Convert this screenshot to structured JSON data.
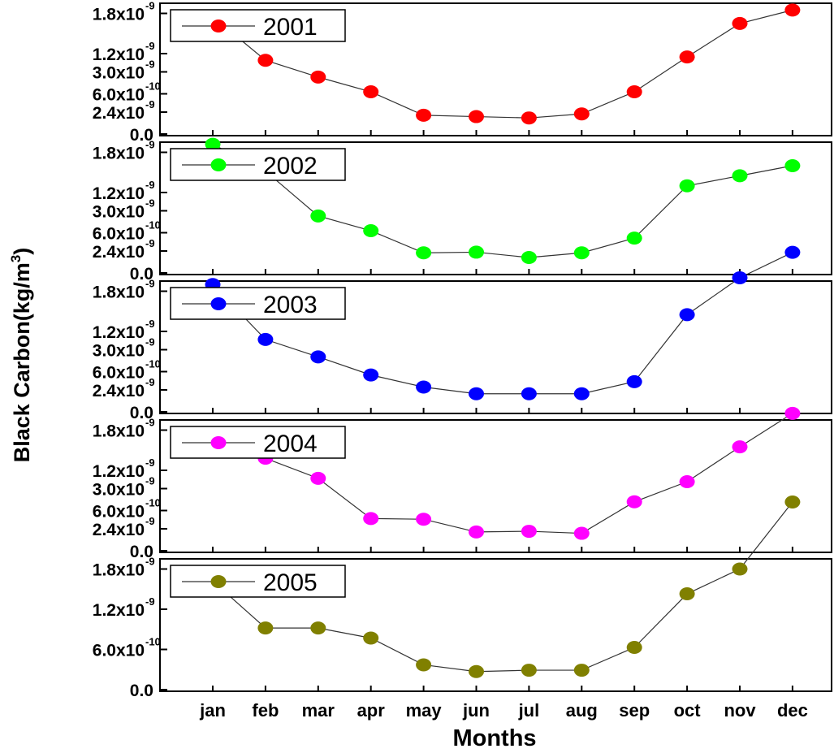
{
  "chart_data": {
    "type": "line",
    "layout": "stacked-panels",
    "ylabel": "Black Carbon(kg/m³)",
    "xlabel": "Months",
    "categories": [
      "jan",
      "feb",
      "mar",
      "apr",
      "may",
      "jun",
      "jul",
      "aug",
      "sep",
      "oct",
      "nov",
      "dec"
    ],
    "ylim": [
      0,
      3.1e-09
    ],
    "yticks": [
      {
        "value": 0,
        "mantissa": "0.0",
        "exponent": ""
      },
      {
        "value": 6e-10,
        "mantissa": "6.0x10",
        "exponent": "-10"
      },
      {
        "value": 1.2e-09,
        "mantissa": "1.2x10",
        "exponent": "-9"
      },
      {
        "value": 1.8e-09,
        "mantissa": "1.8x10",
        "exponent": "-9"
      },
      {
        "value": 2.4e-09,
        "mantissa": "2.4x10",
        "exponent": "-9"
      },
      {
        "value": 3e-09,
        "mantissa": "3.0x10",
        "exponent": "-9"
      }
    ],
    "grid": false,
    "legend_position": "top-left",
    "series": [
      {
        "name": "2001",
        "color": "#ff0000",
        "values": [
          1.75e-09,
          1.1e-09,
          8.5e-10,
          6.3e-10,
          2.8e-10,
          2.6e-10,
          2.4e-10,
          3e-10,
          6.3e-10,
          1.15e-09,
          1.65e-09,
          1.85e-09
        ]
      },
      {
        "name": "2002",
        "color": "#00ff00",
        "values": [
          1.92e-09,
          1.52e-09,
          8.5e-10,
          6.3e-10,
          3e-10,
          3.1e-10,
          2.3e-10,
          3e-10,
          5.2e-10,
          1.3e-09,
          1.45e-09,
          1.6e-09
        ]
      },
      {
        "name": "2003",
        "color": "#0000ff",
        "values": [
          1.9e-09,
          1.08e-09,
          8.2e-10,
          5.5e-10,
          3.7e-10,
          2.7e-10,
          2.7e-10,
          2.7e-10,
          4.5e-10,
          1.45e-09,
          2e-09,
          2.38e-09
        ]
      },
      {
        "name": "2004",
        "color": "#ff00ff",
        "values": [
          1.72e-09,
          1.38e-09,
          1.08e-09,
          4.8e-10,
          4.7e-10,
          2.8e-10,
          2.9e-10,
          2.6e-10,
          7.3e-10,
          1.03e-09,
          1.55e-09,
          2.05e-09
        ]
      },
      {
        "name": "2005",
        "color": "#808000",
        "values": [
          1.62e-09,
          9.2e-10,
          9.2e-10,
          7.7e-10,
          3.7e-10,
          2.7e-10,
          2.9e-10,
          2.9e-10,
          6.3e-10,
          1.43e-09,
          1.8e-09,
          2.8e-09
        ]
      }
    ]
  }
}
